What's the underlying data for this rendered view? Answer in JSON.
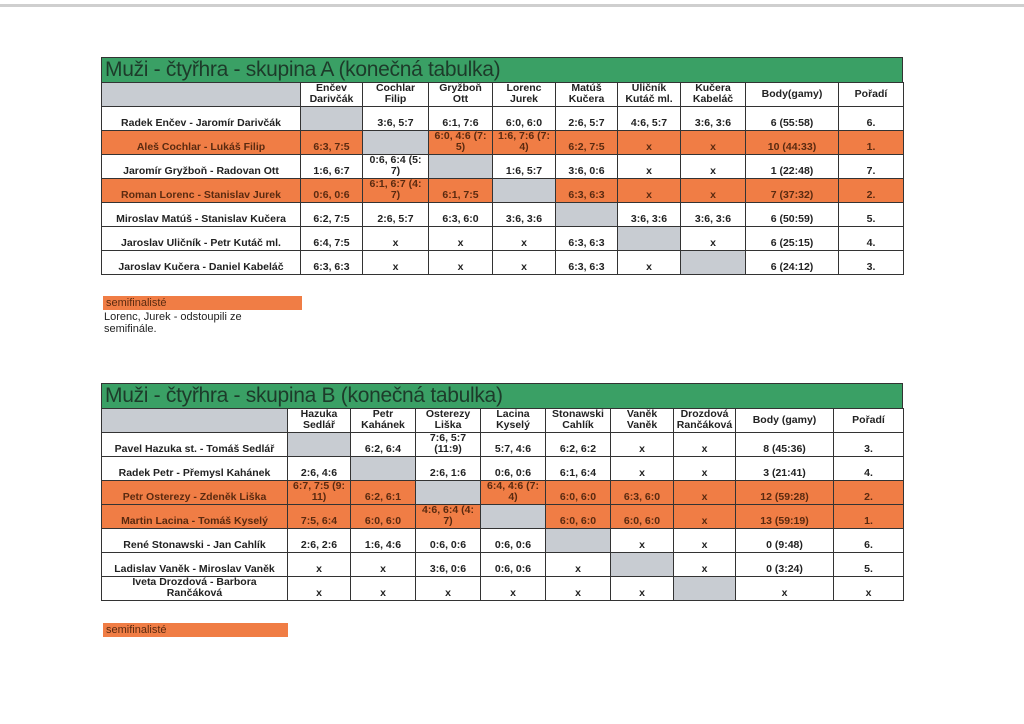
{
  "colors": {
    "title_bg": "#3aa065",
    "semifinalist": "#f07d45",
    "self_cell": "#c8ccd2"
  },
  "groupA": {
    "title": "Muži - čtyřhra - skupina A  (konečná tabulka)",
    "headers": [
      "Enčev Darivčák",
      "Cochlar Filip",
      "Gryžboň Ott",
      "Lorenc Jurek",
      "Matúš Kučera",
      "Uličník Kutáč ml.",
      "Kučera Kabeláč",
      "Body(gamy)",
      "Pořadí"
    ],
    "rows": [
      {
        "name": "Radek Enčev - Jaromír Darivčák",
        "semi": false,
        "cells": [
          "",
          "3:6, 5:7",
          "6:1, 7:6",
          "6:0, 6:0",
          "2:6, 5:7",
          "4:6, 5:7",
          "3:6, 3:6",
          "6 (55:58)",
          "6."
        ]
      },
      {
        "name": "Aleš Cochlar - Lukáš Filip",
        "semi": true,
        "cells": [
          "6:3, 7:5",
          "",
          "6:0, 4:6 (7: 5)",
          "1:6, 7:6 (7: 4)",
          "6:2, 7:5",
          "x",
          "x",
          "10 (44:33)",
          "1."
        ]
      },
      {
        "name": "Jaromír Gryžboň - Radovan Ott",
        "semi": false,
        "cells": [
          "1:6, 6:7",
          "0:6, 6:4 (5: 7)",
          "",
          "1:6, 5:7",
          "3:6, 0:6",
          "x",
          "x",
          "1 (22:48)",
          "7."
        ]
      },
      {
        "name": "Roman Lorenc - Stanislav Jurek",
        "semi": true,
        "cells": [
          "0:6, 0:6",
          "6:1, 6:7 (4: 7)",
          "6:1, 7:5",
          "",
          "6:3, 6:3",
          "x",
          "x",
          "7 (37:32)",
          "2."
        ]
      },
      {
        "name": "Miroslav Matúš - Stanislav Kučera",
        "semi": false,
        "cells": [
          "6:2, 7:5",
          "2:6, 5:7",
          "6:3, 6:0",
          "3:6, 3:6",
          "",
          "3:6, 3:6",
          "3:6, 3:6",
          "6 (50:59)",
          "5."
        ]
      },
      {
        "name": "Jaroslav Uličník - Petr Kutáč ml.",
        "semi": false,
        "cells": [
          "6:4, 7:5",
          "x",
          "x",
          "x",
          "6:3, 6:3",
          "",
          "x",
          "6 (25:15)",
          "4."
        ]
      },
      {
        "name": "Jaroslav Kučera - Daniel Kabeláč",
        "semi": false,
        "cells": [
          "6:3, 6:3",
          "x",
          "x",
          "x",
          "6:3, 6:3",
          "x",
          "",
          "6 (24:12)",
          "3."
        ]
      }
    ],
    "legend": "semifinalisté",
    "note": "Lorenc, Jurek - odstoupili ze semifinále."
  },
  "groupB": {
    "title": "Muži - čtyřhra - skupina B (konečná tabulka)",
    "headers": [
      "Hazuka Sedlář",
      "Petr Kahánek",
      "Osterezy Liška",
      "Lacina Kyselý",
      "Stonawski Cahlík",
      "Vaněk Vaněk",
      "Drozdová Rančáková",
      "Body (gamy)",
      "Pořadí"
    ],
    "rows": [
      {
        "name": "Pavel Hazuka st. - Tomáš Sedlář",
        "semi": false,
        "cells": [
          "",
          "6:2, 6:4",
          "7:6, 5:7 (11:9)",
          "5:7, 4:6",
          "6:2, 6:2",
          "x",
          "x",
          "8 (45:36)",
          "3."
        ]
      },
      {
        "name": "Radek Petr - Přemysl Kahánek",
        "semi": false,
        "cells": [
          "2:6, 4:6",
          "",
          "2:6, 1:6",
          "0:6, 0:6",
          "6:1, 6:4",
          "x",
          "x",
          "3 (21:41)",
          "4."
        ]
      },
      {
        "name": "Petr Osterezy - Zdeněk Liška",
        "semi": true,
        "cells": [
          "6:7, 7:5 (9: 11)",
          "6:2, 6:1",
          "",
          "6:4, 4:6 (7: 4)",
          "6:0, 6:0",
          "6:3, 6:0",
          "x",
          "12 (59:28)",
          "2."
        ]
      },
      {
        "name": "Martin Lacina - Tomáš Kyselý",
        "semi": true,
        "cells": [
          "7:5, 6:4",
          "6:0, 6:0",
          "4:6, 6:4 (4: 7)",
          "",
          "6:0, 6:0",
          "6:0, 6:0",
          "x",
          "13 (59:19)",
          "1."
        ]
      },
      {
        "name": "René Stonawski - Jan Cahlík",
        "semi": false,
        "cells": [
          "2:6, 2:6",
          "1:6, 4:6",
          "0:6, 0:6",
          "0:6, 0:6",
          "",
          "x",
          "x",
          "0 (9:48)",
          "6."
        ]
      },
      {
        "name": "Ladislav Vaněk - Miroslav Vaněk",
        "semi": false,
        "cells": [
          "x",
          "x",
          "3:6, 0:6",
          "0:6, 0:6",
          "x",
          "",
          "x",
          "0 (3:24)",
          "5."
        ]
      },
      {
        "name": "Iveta Drozdová - Barbora Rančáková",
        "semi": false,
        "cells": [
          "x",
          "x",
          "x",
          "x",
          "x",
          "x",
          "",
          "x",
          "x"
        ]
      }
    ],
    "legend": "semifinalisté"
  }
}
